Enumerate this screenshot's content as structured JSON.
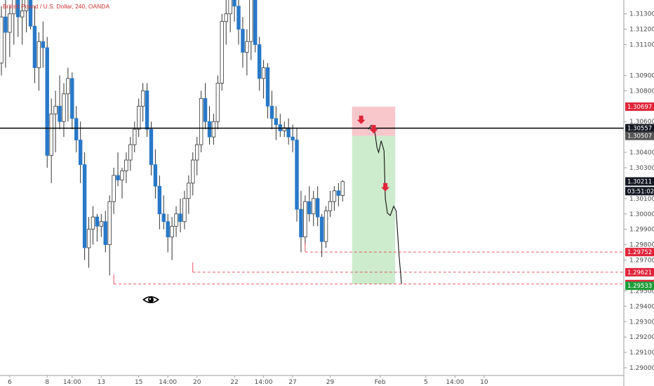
{
  "chart_data": {
    "type": "candlestick",
    "title": "British Pound / U.S. Dollar, 240, OANDA",
    "y_ticks": [
      "1.31300",
      "1.31200",
      "1.31100",
      "1.30900",
      "1.30800",
      "1.30600",
      "1.30400",
      "1.30300",
      "1.30100",
      "1.30000",
      "1.29900",
      "1.29800",
      "1.29700",
      "1.29500",
      "1.29400",
      "1.29300",
      "1.29200",
      "1.29100",
      "1.29000"
    ],
    "ylim": [
      1.2895,
      1.3139
    ],
    "x_ticks": [
      {
        "label": "6",
        "pos": 2
      },
      {
        "label": "8",
        "pos": 11
      },
      {
        "label": "14:00",
        "pos": 17
      },
      {
        "label": "13",
        "pos": 24
      },
      {
        "label": "15",
        "pos": 33
      },
      {
        "label": "14:00",
        "pos": 40
      },
      {
        "label": "20",
        "pos": 47
      },
      {
        "label": "22",
        "pos": 56
      },
      {
        "label": "14:00",
        "pos": 63
      },
      {
        "label": "27",
        "pos": 70
      },
      {
        "label": "29",
        "pos": 79
      },
      {
        "label": "Feb",
        "pos": 91
      },
      {
        "label": "5",
        "pos": 102
      },
      {
        "label": "14:00",
        "pos": 109
      },
      {
        "label": "10",
        "pos": 116
      }
    ],
    "candles": [
      [
        1.3098,
        1.3135,
        1.309,
        1.3128
      ],
      [
        1.3128,
        1.3148,
        1.3095,
        1.3118
      ],
      [
        1.3118,
        1.3135,
        1.3102,
        1.313
      ],
      [
        1.313,
        1.315,
        1.311,
        1.314
      ],
      [
        1.314,
        1.3152,
        1.3115,
        1.3128
      ],
      [
        1.3128,
        1.314,
        1.311,
        1.3132
      ],
      [
        1.3132,
        1.315,
        1.3118,
        1.3145
      ],
      [
        1.3145,
        1.316,
        1.312,
        1.3122
      ],
      [
        1.3122,
        1.3135,
        1.3085,
        1.3095
      ],
      [
        1.3095,
        1.3118,
        1.308,
        1.3112
      ],
      [
        1.3112,
        1.3125,
        1.3095,
        1.3108
      ],
      [
        1.3108,
        1.3115,
        1.303,
        1.3038
      ],
      [
        1.3038,
        1.3075,
        1.302,
        1.3065
      ],
      [
        1.3065,
        1.308,
        1.304,
        1.307
      ],
      [
        1.307,
        1.309,
        1.3055,
        1.306
      ],
      [
        1.306,
        1.3085,
        1.305,
        1.3078
      ],
      [
        1.3078,
        1.3095,
        1.306,
        1.3088
      ],
      [
        1.3088,
        1.3092,
        1.3055,
        1.3062
      ],
      [
        1.3062,
        1.307,
        1.304,
        1.3048
      ],
      [
        1.3048,
        1.306,
        1.302,
        1.3032
      ],
      [
        1.3032,
        1.304,
        1.297,
        1.2978
      ],
      [
        1.2978,
        1.2998,
        1.2965,
        1.299
      ],
      [
        1.299,
        1.3005,
        1.298,
        1.2998
      ],
      [
        1.2998,
        1.3,
        1.2982,
        1.2992
      ],
      [
        1.2992,
        1.3,
        1.2985,
        1.2995
      ],
      [
        1.2995,
        1.3002,
        1.2975,
        1.298
      ],
      [
        1.298,
        1.3012,
        1.296,
        1.3008
      ],
      [
        1.3008,
        1.303,
        1.3,
        1.3025
      ],
      [
        1.3025,
        1.304,
        1.3018,
        1.3022
      ],
      [
        1.3022,
        1.303,
        1.301,
        1.3028
      ],
      [
        1.3028,
        1.304,
        1.302,
        1.3035
      ],
      [
        1.3035,
        1.305,
        1.3028,
        1.3045
      ],
      [
        1.3045,
        1.306,
        1.304,
        1.3055
      ],
      [
        1.3055,
        1.3075,
        1.305,
        1.307
      ],
      [
        1.307,
        1.3085,
        1.306,
        1.308
      ],
      [
        1.308,
        1.3085,
        1.305,
        1.3055
      ],
      [
        1.3055,
        1.306,
        1.3025,
        1.3032
      ],
      [
        1.3032,
        1.3042,
        1.301,
        1.3018
      ],
      [
        1.3018,
        1.3025,
        1.299,
        1.3
      ],
      [
        1.3,
        1.3012,
        1.299,
        1.2995
      ],
      [
        1.2995,
        1.3,
        1.2975,
        1.2985
      ],
      [
        1.2985,
        1.2998,
        1.297,
        1.2992
      ],
      [
        1.2992,
        1.3005,
        1.2985,
        1.3
      ],
      [
        1.3,
        1.301,
        1.2988,
        1.2995
      ],
      [
        1.2995,
        1.3015,
        1.299,
        1.301
      ],
      [
        1.301,
        1.3025,
        1.3,
        1.302
      ],
      [
        1.302,
        1.304,
        1.3012,
        1.3035
      ],
      [
        1.3035,
        1.305,
        1.3025,
        1.3045
      ],
      [
        1.3045,
        1.308,
        1.304,
        1.3075
      ],
      [
        1.3075,
        1.3085,
        1.3055,
        1.306
      ],
      [
        1.306,
        1.307,
        1.3045,
        1.305
      ],
      [
        1.305,
        1.3065,
        1.3045,
        1.306
      ],
      [
        1.306,
        1.309,
        1.3055,
        1.3085
      ],
      [
        1.3085,
        1.313,
        1.308,
        1.3125
      ],
      [
        1.3125,
        1.314,
        1.311,
        1.313
      ],
      [
        1.313,
        1.315,
        1.3118,
        1.314
      ],
      [
        1.314,
        1.3155,
        1.3125,
        1.3135
      ],
      [
        1.3135,
        1.3145,
        1.311,
        1.312
      ],
      [
        1.312,
        1.3128,
        1.3095,
        1.3105
      ],
      [
        1.3105,
        1.312,
        1.309,
        1.3112
      ],
      [
        1.3112,
        1.315,
        1.31,
        1.314
      ],
      [
        1.314,
        1.3148,
        1.3105,
        1.311
      ],
      [
        1.311,
        1.3115,
        1.308,
        1.3088
      ],
      [
        1.3088,
        1.31,
        1.3075,
        1.3095
      ],
      [
        1.3095,
        1.3098,
        1.3062,
        1.307
      ],
      [
        1.307,
        1.308,
        1.3055,
        1.3062
      ],
      [
        1.3062,
        1.307,
        1.3048,
        1.3058
      ],
      [
        1.3058,
        1.3065,
        1.305,
        1.3054
      ],
      [
        1.3054,
        1.306,
        1.305,
        1.3056
      ],
      [
        1.3056,
        1.3062,
        1.3045,
        1.305
      ],
      [
        1.305,
        1.3058,
        1.304,
        1.3048
      ],
      [
        1.3048,
        1.3056,
        1.2995,
        1.3003
      ],
      [
        1.3003,
        1.3015,
        1.2975,
        1.2985
      ],
      [
        1.2985,
        1.3012,
        1.298,
        1.3008
      ],
      [
        1.3008,
        1.3018,
        1.2995,
        1.3
      ],
      [
        1.3,
        1.3015,
        1.2992,
        1.301
      ],
      [
        1.301,
        1.3018,
        1.2992,
        1.2998
      ],
      [
        1.2998,
        1.3,
        1.2972,
        1.2982
      ],
      [
        1.2982,
        1.3005,
        1.2978,
        1.3002
      ],
      [
        1.3002,
        1.3015,
        1.2998,
        1.3008
      ],
      [
        1.3008,
        1.3018,
        1.3002,
        1.3015
      ],
      [
        1.3015,
        1.302,
        1.3005,
        1.3012
      ],
      [
        1.3012,
        1.3022,
        1.3008,
        1.3021
      ]
    ],
    "horizontal_level": 1.30557,
    "entry_level": 1.30507,
    "stop_level": 1.30697,
    "target_level": 1.29544,
    "support_lines": [
      {
        "price": 1.29752,
        "from": 73,
        "to": 112
      },
      {
        "price": 1.29621,
        "from": 46,
        "to": 112
      },
      {
        "price": 1.29544,
        "from": 27,
        "to": 112
      }
    ],
    "projection_path": [
      [
        88.5,
        1.3055
      ],
      [
        89.2,
        1.30575
      ],
      [
        90.0,
        1.30545
      ],
      [
        90.6,
        1.3043
      ],
      [
        91.0,
        1.304
      ],
      [
        91.6,
        1.30475
      ],
      [
        92.3,
        1.3041
      ],
      [
        92.6,
        1.301
      ],
      [
        93.1,
        1.30005
      ],
      [
        93.8,
        1.2999
      ],
      [
        94.6,
        1.3005
      ],
      [
        95.2,
        1.3002
      ],
      [
        95.9,
        1.2973
      ],
      [
        96.5,
        1.29545
      ]
    ],
    "arrows": [
      [
        86.8,
        1.30584
      ],
      [
        89.8,
        1.30523
      ],
      [
        92.6,
        1.30146
      ]
    ],
    "price_labels": [
      {
        "text": "1.30697",
        "price": 1.30697,
        "color": "#e0253a"
      },
      {
        "text": "1.30557",
        "price": 1.30557,
        "color": "#131722"
      },
      {
        "text": "1.30507",
        "price": 1.30507,
        "color": "#545454"
      },
      {
        "text": "1.30211",
        "price": 1.30211,
        "color": "#131722"
      },
      {
        "text": "03:51:02",
        "price": 1.30148,
        "color": "#131722"
      },
      {
        "text": "1.29752",
        "price": 1.29752,
        "color": "#e0253a"
      },
      {
        "text": "1.29621",
        "price": 1.29621,
        "color": "#e0253a"
      },
      {
        "text": "1.29544",
        "price": 1.29544,
        "color": "#e0253a"
      },
      {
        "text": "1.29533",
        "price": 1.29533,
        "color": "#1e9e3a"
      }
    ],
    "colors": {
      "up": "#ffffff",
      "down": "#2879c8",
      "wick": "#333333",
      "stop_zone": "#f7c7cc",
      "target_zone": "#cdeccd",
      "dashed": "#e0253a",
      "arrow": "#e0253a"
    },
    "grid": false,
    "eye_icon": "eye-icon"
  }
}
